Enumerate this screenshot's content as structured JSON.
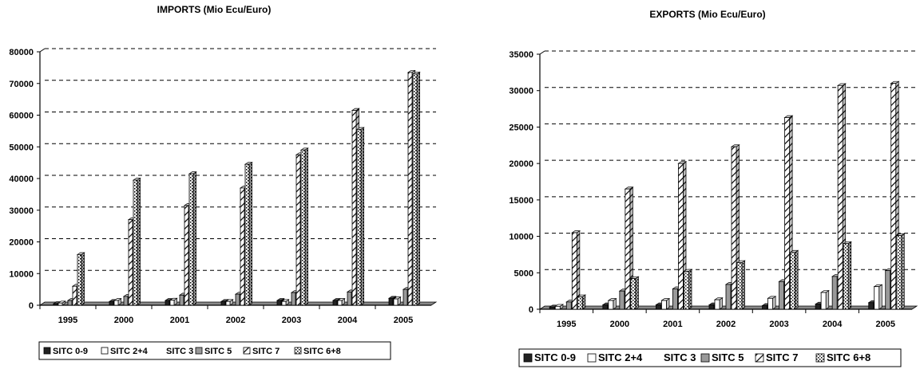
{
  "chart_data": [
    {
      "type": "bar",
      "title": "IMPORTS (Mio Ecu/Euro)",
      "xlabel": "",
      "ylabel": "",
      "categories": [
        "1995",
        "2000",
        "2001",
        "2002",
        "2003",
        "2004",
        "2005"
      ],
      "ylim": [
        0,
        80000
      ],
      "yticks": [
        0,
        10000,
        20000,
        30000,
        40000,
        50000,
        60000,
        70000,
        80000
      ],
      "grid": true,
      "legend_position": "bottom",
      "series": [
        {
          "name": "SITC 0-9",
          "pattern": "dark",
          "values": [
            500,
            1200,
            1500,
            1200,
            1500,
            1500,
            2200
          ]
        },
        {
          "name": "SITC 2+4",
          "pattern": "white",
          "values": [
            700,
            1500,
            1600,
            1200,
            1200,
            1500,
            2000
          ]
        },
        {
          "name": "SITC 3",
          "pattern": "none",
          "values": [
            0,
            0,
            0,
            0,
            0,
            0,
            0
          ]
        },
        {
          "name": "SITC 5",
          "pattern": "gray",
          "values": [
            1500,
            2800,
            3200,
            3500,
            4000,
            4200,
            5000
          ]
        },
        {
          "name": "SITC 7",
          "pattern": "hatch",
          "values": [
            6000,
            27000,
            31500,
            37000,
            47500,
            61500,
            73500
          ]
        },
        {
          "name": "SITC 6+8",
          "pattern": "dots",
          "values": [
            16000,
            39500,
            41500,
            44500,
            49000,
            55500,
            73000
          ]
        }
      ]
    },
    {
      "type": "bar",
      "title": "EXPORTS (Mio Ecu/Euro)",
      "xlabel": "",
      "ylabel": "",
      "categories": [
        "1995",
        "2000",
        "2001",
        "2002",
        "2003",
        "2004",
        "2005"
      ],
      "ylim": [
        0,
        35000
      ],
      "yticks": [
        0,
        5000,
        10000,
        15000,
        20000,
        25000,
        30000,
        35000
      ],
      "grid": true,
      "legend_position": "bottom",
      "series": [
        {
          "name": "SITC 0-9",
          "pattern": "dark",
          "values": [
            300,
            600,
            600,
            600,
            500,
            700,
            900
          ]
        },
        {
          "name": "SITC 2+4",
          "pattern": "white",
          "values": [
            400,
            1200,
            1200,
            1300,
            1500,
            2300,
            3100
          ]
        },
        {
          "name": "SITC 3",
          "pattern": "none",
          "values": [
            0,
            0,
            0,
            0,
            0,
            0,
            0
          ]
        },
        {
          "name": "SITC 5",
          "pattern": "gray",
          "values": [
            1000,
            2500,
            2800,
            3400,
            3800,
            4500,
            5300
          ]
        },
        {
          "name": "SITC 7",
          "pattern": "hatch",
          "values": [
            10500,
            16500,
            20000,
            22300,
            26300,
            30700,
            31000
          ]
        },
        {
          "name": "SITC 6+8",
          "pattern": "dots",
          "values": [
            1700,
            4200,
            5200,
            6400,
            7800,
            9000,
            10100
          ]
        }
      ]
    }
  ]
}
